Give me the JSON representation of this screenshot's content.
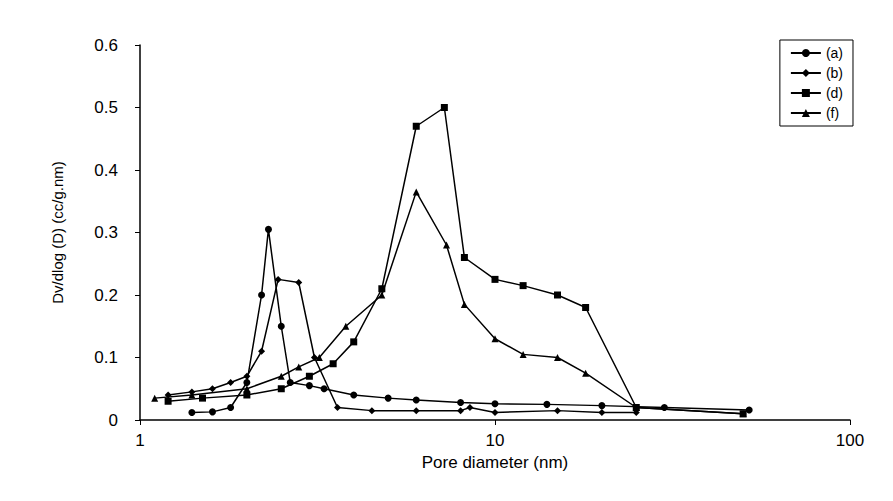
{
  "chart_data": {
    "type": "line",
    "x_label": "Pore diameter (nm)",
    "y_label": "Dv/dlog (D) (cc/g.nm)",
    "log": "x",
    "grid": false,
    "legend": "top-right",
    "xlim": [
      1,
      100
    ],
    "xticks": [
      1,
      10,
      100
    ],
    "ylim": [
      0,
      0.6
    ],
    "yticks": [
      0,
      0.1,
      0.2,
      0.3,
      0.4,
      0.5,
      0.6
    ],
    "series": [
      {
        "name": "(a)",
        "color": "#000000",
        "marker": "circle",
        "x": [
          1.4,
          1.6,
          1.8,
          2.0,
          2.2,
          2.3,
          2.5,
          2.65,
          3.0,
          3.3,
          4.0,
          5.0,
          6.0,
          8.0,
          10,
          14,
          20,
          30,
          52
        ],
        "values": [
          0.012,
          0.013,
          0.02,
          0.06,
          0.2,
          0.305,
          0.15,
          0.06,
          0.055,
          0.05,
          0.04,
          0.035,
          0.032,
          0.028,
          0.026,
          0.025,
          0.023,
          0.02,
          0.016
        ]
      },
      {
        "name": "(b)",
        "color": "#000000",
        "marker": "diamond",
        "x": [
          1.2,
          1.4,
          1.6,
          1.8,
          2.0,
          2.2,
          2.45,
          2.8,
          3.1,
          3.6,
          4.5,
          6.0,
          8.0,
          8.5,
          10,
          15,
          20,
          25
        ],
        "values": [
          0.04,
          0.045,
          0.05,
          0.06,
          0.07,
          0.11,
          0.225,
          0.22,
          0.1,
          0.02,
          0.015,
          0.015,
          0.015,
          0.02,
          0.012,
          0.015,
          0.012,
          0.012
        ]
      },
      {
        "name": "(d)",
        "color": "#000000",
        "marker": "square",
        "x": [
          1.2,
          1.5,
          2.0,
          2.5,
          3.0,
          3.5,
          4.0,
          4.8,
          6.0,
          7.2,
          8.2,
          10,
          12,
          15,
          18,
          25,
          50
        ],
        "values": [
          0.03,
          0.035,
          0.04,
          0.05,
          0.07,
          0.09,
          0.125,
          0.21,
          0.47,
          0.5,
          0.26,
          0.225,
          0.215,
          0.2,
          0.18,
          0.02,
          0.01
        ]
      },
      {
        "name": "(f)",
        "color": "#000000",
        "marker": "triangle",
        "x": [
          1.1,
          1.4,
          2.0,
          2.5,
          2.8,
          3.2,
          3.8,
          4.8,
          6.0,
          7.3,
          8.2,
          10,
          12,
          15,
          18,
          25,
          50
        ],
        "values": [
          0.035,
          0.04,
          0.05,
          0.07,
          0.085,
          0.1,
          0.15,
          0.2,
          0.365,
          0.28,
          0.185,
          0.13,
          0.105,
          0.1,
          0.075,
          0.02,
          0.01
        ]
      }
    ]
  }
}
